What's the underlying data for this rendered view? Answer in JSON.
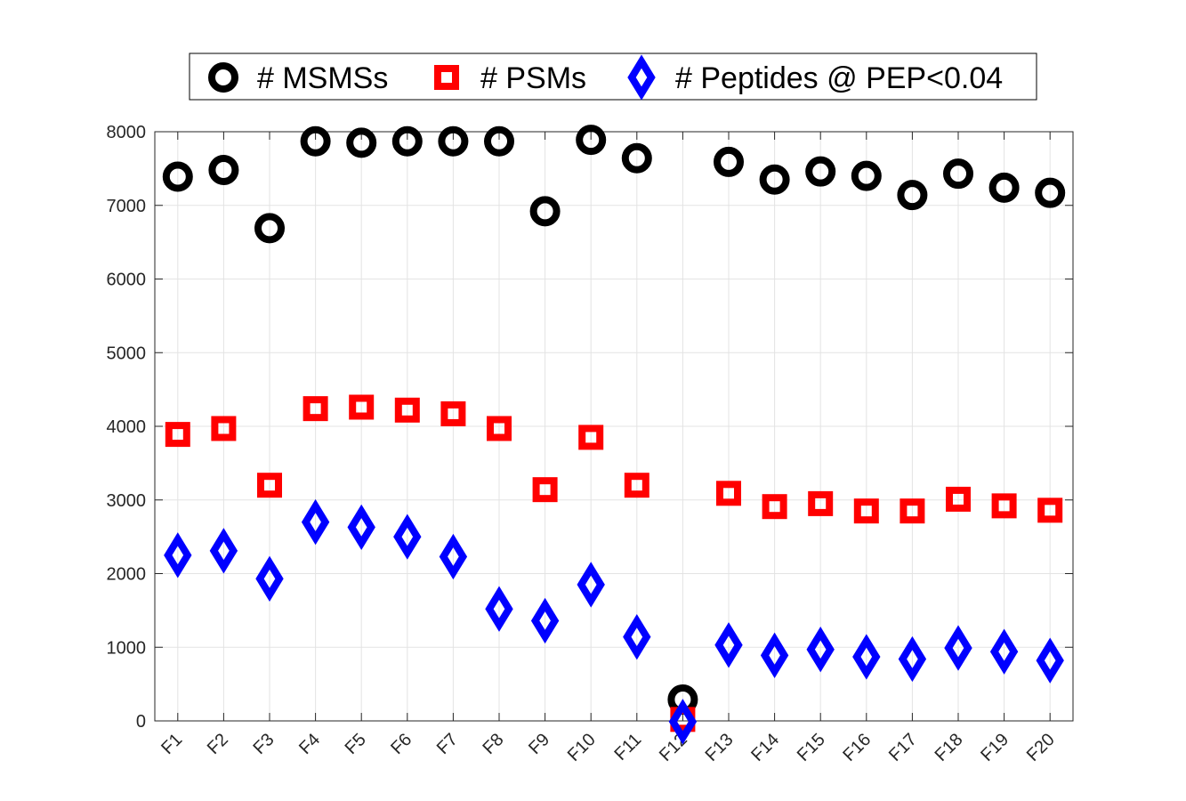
{
  "chart_data": {
    "type": "scatter",
    "categories": [
      "F1",
      "F2",
      "F3",
      "F4",
      "F5",
      "F6",
      "F7",
      "F8",
      "F9",
      "F10",
      "F11",
      "F12",
      "F13",
      "F14",
      "F15",
      "F16",
      "F17",
      "F18",
      "F19",
      "F20"
    ],
    "series": [
      {
        "name": "# MSMSs",
        "marker": "circle",
        "color": "#000000",
        "values": [
          7390,
          7480,
          6690,
          7870,
          7850,
          7870,
          7870,
          7870,
          6920,
          7890,
          7640,
          290,
          7590,
          7350,
          7460,
          7400,
          7140,
          7430,
          7240,
          7170
        ]
      },
      {
        "name": "# PSMs",
        "marker": "square",
        "color": "#ff0000",
        "values": [
          3890,
          3970,
          3200,
          4240,
          4260,
          4220,
          4170,
          3970,
          3140,
          3850,
          3200,
          20,
          3090,
          2910,
          2950,
          2850,
          2850,
          3010,
          2920,
          2860
        ]
      },
      {
        "name": "# Peptides @ PEP<0.04",
        "marker": "diamond",
        "color": "#0000ff",
        "values": [
          2250,
          2310,
          1930,
          2700,
          2630,
          2500,
          2230,
          1520,
          1360,
          1850,
          1140,
          -10,
          1030,
          890,
          970,
          870,
          840,
          990,
          940,
          820
        ]
      }
    ],
    "yticks": [
      "0",
      "1000",
      "2000",
      "3000",
      "4000",
      "5000",
      "6000",
      "7000",
      "8000"
    ],
    "ylim": [
      0,
      8000
    ],
    "grid": true,
    "legend_position": "top-center, horizontal"
  }
}
